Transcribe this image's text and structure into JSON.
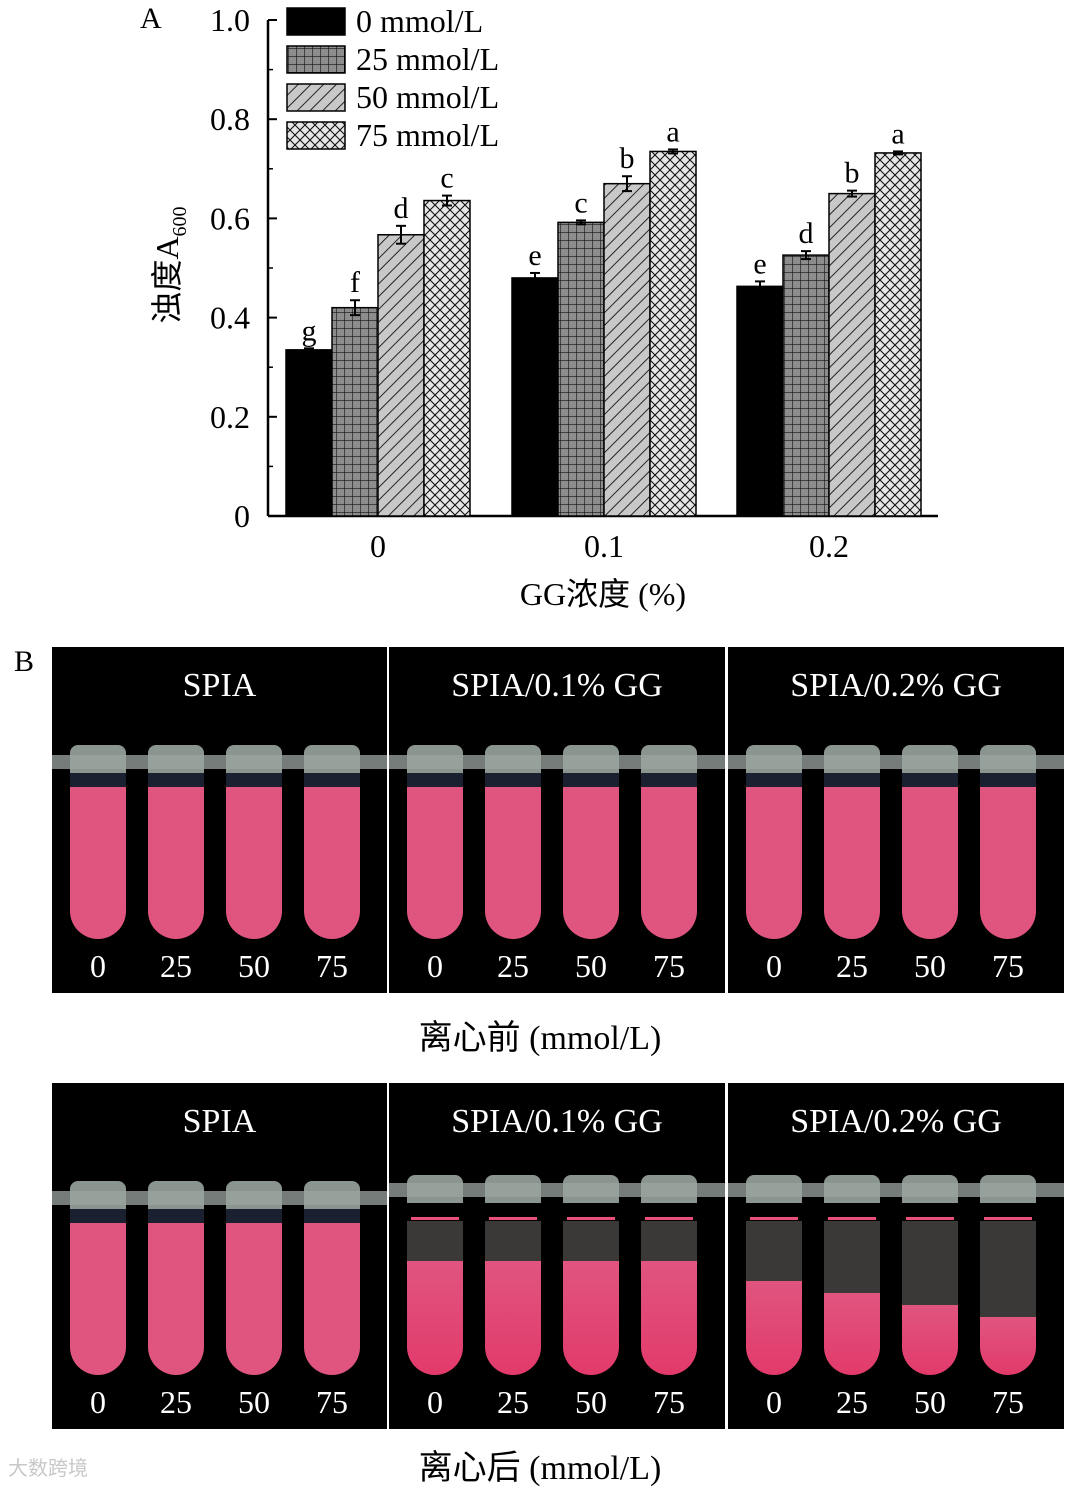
{
  "panel_a_label": "A",
  "panel_b_label": "B",
  "chart_data": {
    "type": "bar",
    "xlabel": "GG浓度 (%)",
    "ylabel_main": "浊度A",
    "ylabel_sub": "600",
    "categories": [
      "0",
      "0.1",
      "0.2"
    ],
    "ylim": [
      0,
      1.0
    ],
    "yticks": [
      "0",
      "0.2",
      "0.4",
      "0.6",
      "0.8",
      "1.0"
    ],
    "ytick_values": [
      0,
      0.2,
      0.4,
      0.6,
      0.8,
      1.0
    ],
    "series": [
      {
        "name": "0 mmol/L",
        "pattern": "solid",
        "values": [
          0.335,
          0.48,
          0.463
        ],
        "errors": [
          0.003,
          0.01,
          0.01
        ],
        "labels": [
          "g",
          "e",
          "e"
        ]
      },
      {
        "name": "25 mmol/L",
        "pattern": "grid",
        "values": [
          0.42,
          0.592,
          0.526
        ],
        "errors": [
          0.015,
          0.004,
          0.008
        ],
        "labels": [
          "f",
          "c",
          "d"
        ]
      },
      {
        "name": "50 mmol/L",
        "pattern": "diag",
        "values": [
          0.567,
          0.67,
          0.65
        ],
        "errors": [
          0.018,
          0.015,
          0.006
        ],
        "labels": [
          "d",
          "b",
          "b"
        ]
      },
      {
        "name": "75 mmol/L",
        "pattern": "cross",
        "values": [
          0.636,
          0.735,
          0.732
        ],
        "errors": [
          0.01,
          0.004,
          0.003
        ],
        "labels": [
          "c",
          "a",
          "a"
        ]
      }
    ]
  },
  "photos": {
    "before": {
      "caption": "离心前 (mmol/L)",
      "panels": [
        {
          "title": "SPIA",
          "concs": [
            "0",
            "25",
            "50",
            "75"
          ]
        },
        {
          "title": "SPIA/0.1% GG",
          "concs": [
            "0",
            "25",
            "50",
            "75"
          ]
        },
        {
          "title": "SPIA/0.2% GG",
          "concs": [
            "0",
            "25",
            "50",
            "75"
          ]
        }
      ]
    },
    "after": {
      "caption": "离心后 (mmol/L)",
      "panels": [
        {
          "title": "SPIA",
          "concs": [
            "0",
            "25",
            "50",
            "75"
          ]
        },
        {
          "title": "SPIA/0.1% GG",
          "concs": [
            "0",
            "25",
            "50",
            "75"
          ]
        },
        {
          "title": "SPIA/0.2% GG",
          "concs": [
            "0",
            "25",
            "50",
            "75"
          ]
        }
      ]
    }
  },
  "colors": {
    "liquid": "#e0557f",
    "liquid_dark": "#e23a6a",
    "bar_fill": "#8c8c8c",
    "bar_fill_light": "#d9d9d9"
  },
  "watermark": "大数跨境"
}
